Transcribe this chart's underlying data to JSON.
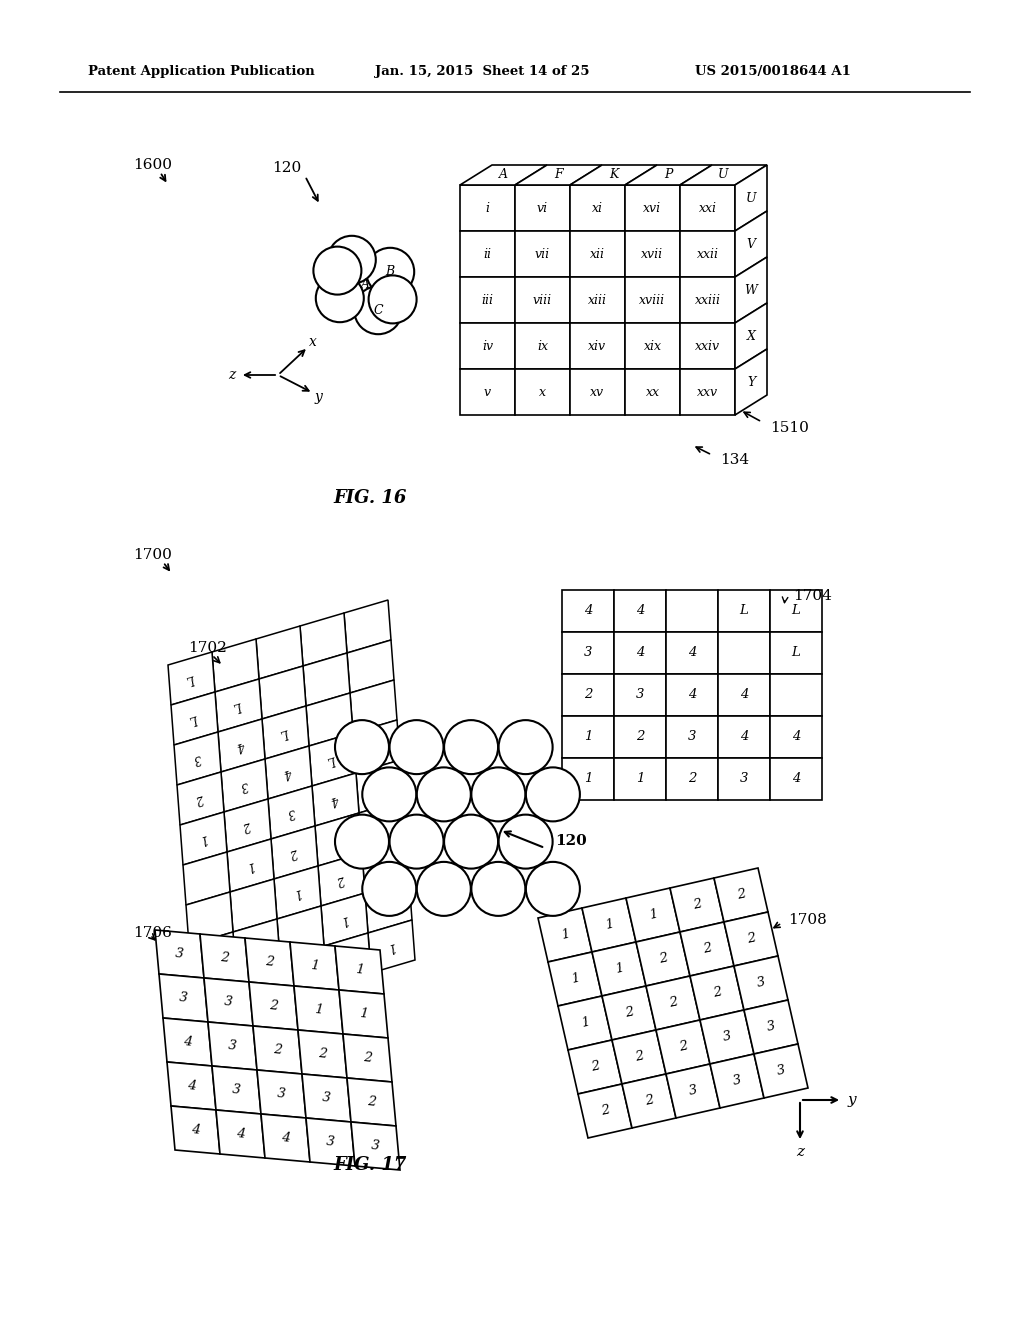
{
  "header_left": "Patent Application Publication",
  "header_mid": "Jan. 15, 2015  Sheet 14 of 25",
  "header_right": "US 2015/0018644 A1",
  "fig16_label": "FIG. 16",
  "fig17_label": "FIG. 17",
  "cube_top_labels": [
    "A",
    "F",
    "K",
    "P",
    "U"
  ],
  "cube_right_labels": [
    "U",
    "V",
    "W",
    "X",
    "Y"
  ],
  "cube_cells": [
    [
      "i",
      "vi",
      "xi",
      "xvi",
      "xxi"
    ],
    [
      "ii",
      "vii",
      "xii",
      "xvii",
      "xxii"
    ],
    [
      "iii",
      "viii",
      "xiii",
      "xviii",
      "xxiii"
    ],
    [
      "iv",
      "ix",
      "xiv",
      "xix",
      "xxiv"
    ],
    [
      "v",
      "x",
      "xv",
      "xx",
      "xxv"
    ]
  ],
  "grid1704": [
    [
      "4",
      "4",
      "",
      "L",
      "L"
    ],
    [
      "3",
      "4",
      "4",
      "",
      "L"
    ],
    [
      "2",
      "3",
      "4",
      "4",
      ""
    ],
    [
      "1",
      "2",
      "3",
      "4",
      "4"
    ],
    [
      "1",
      "1",
      "2",
      "3",
      "4"
    ]
  ],
  "grid1706": [
    [
      "3",
      "2",
      "2",
      "1",
      "1"
    ],
    [
      "3",
      "3",
      "2",
      "1",
      "1"
    ],
    [
      "4",
      "3",
      "2",
      "2",
      "2"
    ],
    [
      "4",
      "3",
      "3",
      "3",
      "2"
    ],
    [
      "4",
      "4",
      "4",
      "3",
      "3"
    ]
  ],
  "grid1708": [
    [
      "1",
      "1",
      "1",
      "2",
      "2"
    ],
    [
      "1",
      "1",
      "2",
      "2",
      "2"
    ],
    [
      "1",
      "2",
      "2",
      "2",
      "3"
    ],
    [
      "2",
      "2",
      "2",
      "3",
      "3"
    ],
    [
      "2",
      "2",
      "3",
      "3",
      "3"
    ]
  ],
  "grid1702_labels": [
    [
      "",
      "",
      "",
      "",
      "L"
    ],
    [
      "",
      "",
      "",
      "L",
      "L"
    ],
    [
      "",
      "",
      "L",
      "4",
      "3"
    ],
    [
      "",
      "L",
      "4",
      "3",
      "2"
    ],
    [
      "L",
      "4",
      "3",
      "2",
      "1"
    ],
    [
      "4",
      "3",
      "2",
      "1",
      ""
    ],
    [
      "3",
      "2",
      "1",
      "",
      ""
    ],
    [
      "2",
      "1",
      "",
      "",
      ""
    ],
    [
      "1",
      "",
      "",
      "",
      ""
    ]
  ]
}
